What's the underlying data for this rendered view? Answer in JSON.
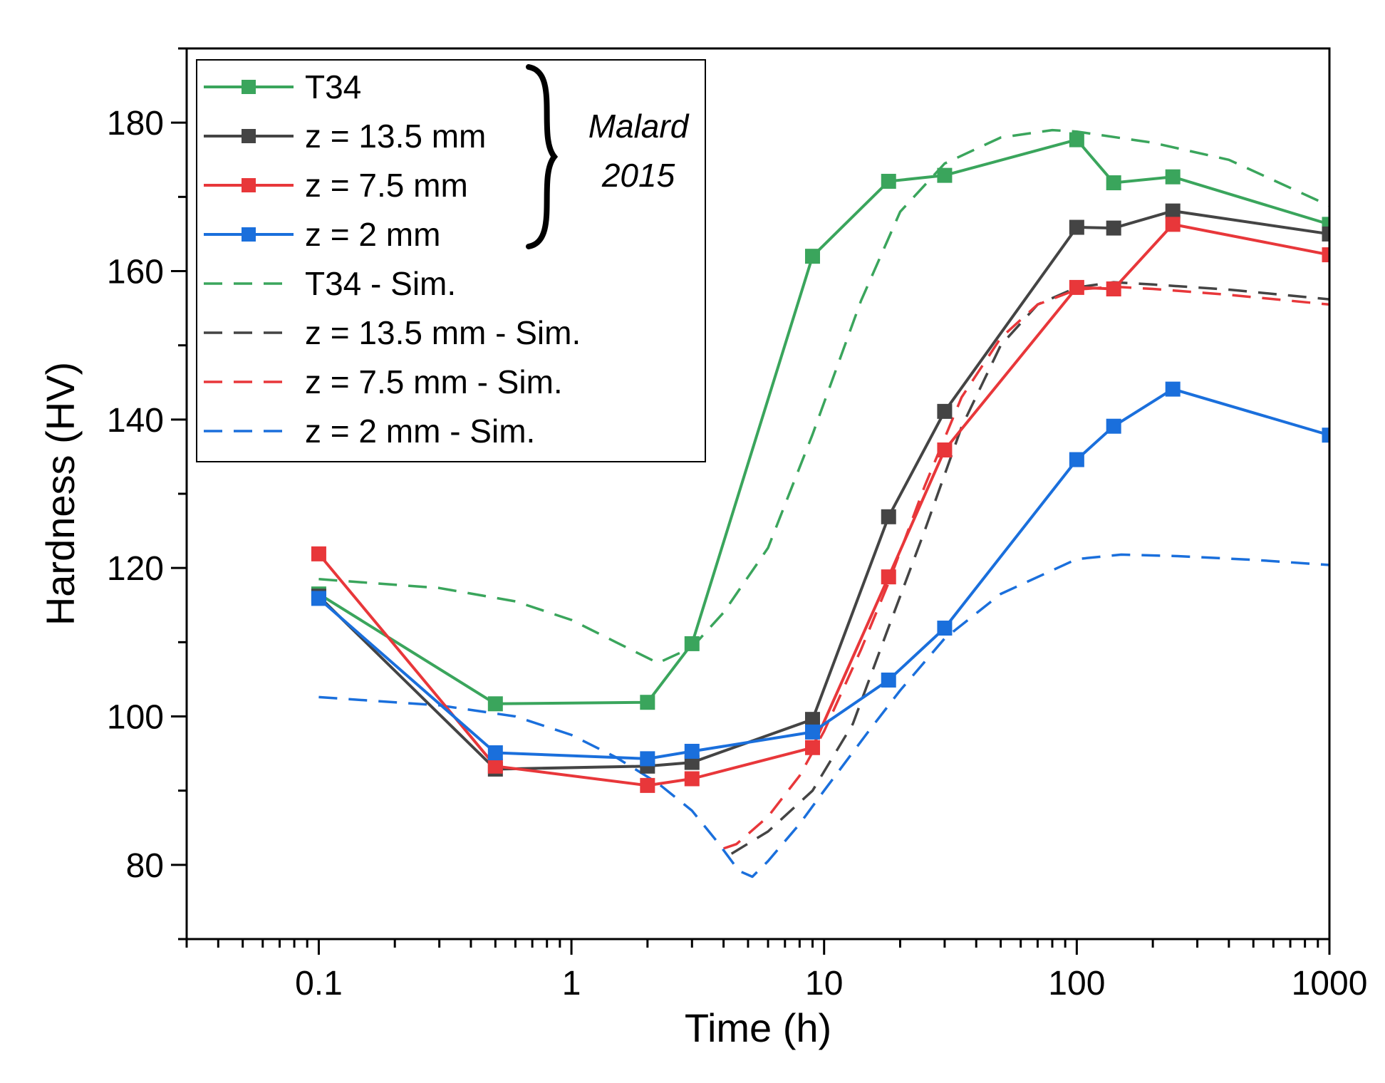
{
  "chart_data": {
    "type": "line",
    "xlabel": "Time (h)",
    "ylabel": "Hardness (HV)",
    "xscale": "log",
    "xlim": [
      0.03,
      1000
    ],
    "ylim": [
      70,
      190
    ],
    "xticks": [
      0.1,
      1,
      10,
      100,
      1000
    ],
    "xtick_labels": [
      "0.1",
      "1",
      "10",
      "100",
      "1000"
    ],
    "yticks": [
      80,
      100,
      120,
      140,
      160,
      180
    ],
    "ytick_labels": [
      "80",
      "100",
      "120",
      "140",
      "160",
      "180"
    ],
    "legend_position": "top-left",
    "annotation": {
      "line1": "Malard",
      "line2": "2015",
      "groups": "T34, z = 13.5 mm, z = 7.5 mm, z = 2 mm"
    },
    "series": [
      {
        "name": "T34",
        "color": "#3aa55c",
        "style": "solid",
        "marker": "square",
        "x": [
          0.1,
          0.5,
          2,
          3,
          9,
          18,
          30,
          100,
          140,
          240,
          1000
        ],
        "y": [
          116.5,
          101.7,
          101.9,
          109.8,
          162,
          172.1,
          172.9,
          177.7,
          171.9,
          172.7,
          166.3
        ]
      },
      {
        "name": "z = 13.5 mm",
        "color": "#444444",
        "style": "solid",
        "marker": "square",
        "x": [
          0.1,
          0.5,
          2,
          3,
          9,
          18,
          30,
          100,
          140,
          240,
          1000
        ],
        "y": [
          116.2,
          92.9,
          93.3,
          93.8,
          99.6,
          126.9,
          141.1,
          165.9,
          165.8,
          168.1,
          165
        ]
      },
      {
        "name": "z = 7.5 mm",
        "color": "#e8373a",
        "style": "solid",
        "marker": "square",
        "x": [
          0.1,
          0.5,
          2,
          3,
          9,
          18,
          30,
          100,
          140,
          240,
          1000
        ],
        "y": [
          121.9,
          93.3,
          90.7,
          91.6,
          95.8,
          118.8,
          135.9,
          157.8,
          157.6,
          166.3,
          162.2
        ]
      },
      {
        "name": "z = 2 mm",
        "color": "#1a6fdc",
        "style": "solid",
        "marker": "square",
        "x": [
          0.1,
          0.5,
          2,
          3,
          9,
          18,
          30,
          100,
          140,
          240,
          1000
        ],
        "y": [
          115.9,
          95.1,
          94.3,
          95.3,
          97.9,
          104.9,
          111.9,
          134.6,
          139.1,
          144.1,
          137.9
        ]
      },
      {
        "name": "T34 - Sim.",
        "color": "#3aa55c",
        "style": "dashed",
        "marker": "none",
        "x": [
          0.1,
          0.3,
          0.6,
          1,
          1.5,
          2.2,
          3,
          4,
          6,
          9,
          14,
          20,
          30,
          50,
          80,
          100,
          200,
          400,
          1000
        ],
        "y": [
          118.5,
          117.3,
          115.5,
          113,
          110,
          107.2,
          109.3,
          114,
          122.7,
          138,
          156,
          168,
          174.5,
          178,
          179,
          178.8,
          177.3,
          175,
          168.8
        ]
      },
      {
        "name": "z = 13.5 mm - Sim.",
        "color": "#444444",
        "style": "dashed",
        "marker": "none",
        "x": [
          4.3,
          6,
          9,
          13,
          18,
          25,
          35,
          50,
          70,
          100,
          140,
          200,
          400,
          1000
        ],
        "y": [
          81.5,
          84.5,
          90,
          99,
          112,
          125,
          139,
          150,
          155.5,
          157.8,
          158.5,
          158.2,
          157.5,
          156.2
        ]
      },
      {
        "name": "z = 7.5 mm - Sim.",
        "color": "#e8373a",
        "style": "dashed",
        "marker": "none",
        "x": [
          4,
          4.5,
          6,
          8,
          10,
          14,
          18,
          25,
          35,
          50,
          70,
          100,
          140,
          200,
          400,
          1000
        ],
        "y": [
          82.2,
          82.8,
          86.5,
          92,
          98,
          109,
          118,
          131,
          143,
          151,
          155.5,
          157.5,
          157.9,
          157.6,
          156.8,
          155.5
        ]
      },
      {
        "name": "z = 2 mm - Sim.",
        "color": "#1a6fdc",
        "style": "dashed",
        "marker": "none",
        "x": [
          0.1,
          0.3,
          0.6,
          1,
          1.5,
          2.2,
          3,
          3.8,
          4.6,
          5.2,
          6,
          8,
          10,
          15,
          20,
          30,
          50,
          100,
          150,
          250,
          500,
          1000
        ],
        "y": [
          102.6,
          101.5,
          100,
          97.5,
          94.5,
          91,
          87.3,
          83,
          79.2,
          78.4,
          80.5,
          85.5,
          90,
          98,
          103.5,
          110.5,
          116.5,
          121.2,
          121.8,
          121.6,
          121.1,
          120.4
        ]
      }
    ]
  }
}
